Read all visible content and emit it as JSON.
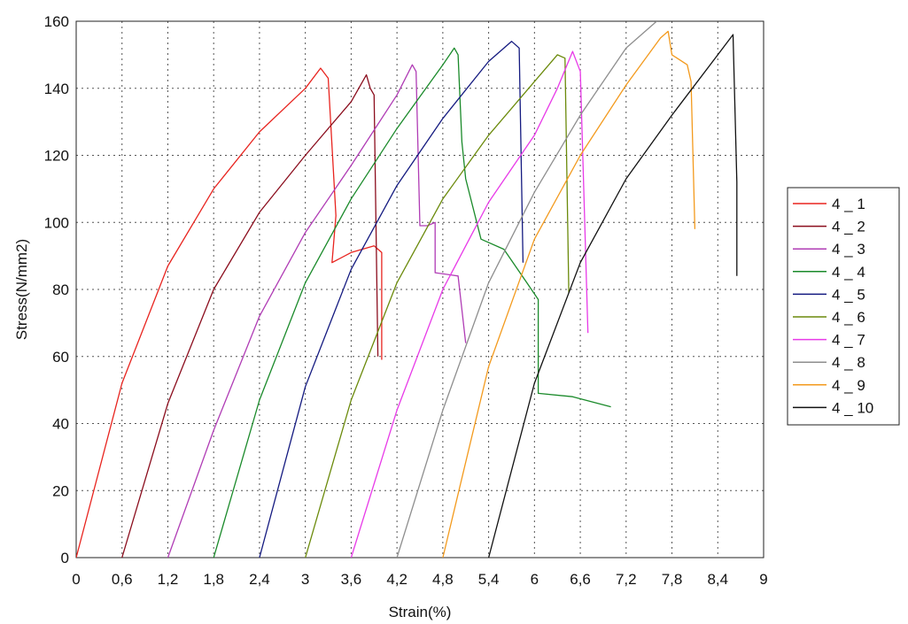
{
  "chart_data": {
    "type": "line",
    "title": "",
    "xlabel": "Strain(%)",
    "ylabel": "Stress(N/mm2)",
    "xlim": [
      0,
      9
    ],
    "ylim": [
      0,
      160
    ],
    "x_ticks": [
      "0",
      "0,6",
      "1,2",
      "1,8",
      "2,4",
      "3",
      "3,6",
      "4,2",
      "4,8",
      "5,4",
      "6",
      "6,6",
      "7,2",
      "7,8",
      "8,4",
      "9"
    ],
    "y_ticks": [
      "0",
      "20",
      "40",
      "60",
      "80",
      "100",
      "120",
      "140",
      "160"
    ],
    "grid": true,
    "legend_position": "right",
    "series": [
      {
        "name": "4 _ 1",
        "color": "#e8241f",
        "points": [
          [
            0,
            0
          ],
          [
            0.6,
            52
          ],
          [
            1.2,
            87
          ],
          [
            1.8,
            110
          ],
          [
            2.4,
            127
          ],
          [
            3.0,
            140
          ],
          [
            3.2,
            146
          ],
          [
            3.3,
            143
          ],
          [
            3.4,
            102
          ],
          [
            3.35,
            88
          ],
          [
            3.6,
            91
          ],
          [
            3.9,
            93
          ],
          [
            4.0,
            91
          ],
          [
            4.0,
            59
          ]
        ]
      },
      {
        "name": "4 _ 2",
        "color": "#8b0d1d",
        "points": [
          [
            0.6,
            0
          ],
          [
            1.2,
            46
          ],
          [
            1.8,
            80
          ],
          [
            2.4,
            103
          ],
          [
            3.0,
            120
          ],
          [
            3.6,
            136
          ],
          [
            3.8,
            144
          ],
          [
            3.85,
            140
          ],
          [
            3.9,
            138
          ],
          [
            3.95,
            60
          ]
        ]
      },
      {
        "name": "4 _ 3",
        "color": "#b03cb5",
        "points": [
          [
            1.2,
            0
          ],
          [
            1.8,
            38
          ],
          [
            2.4,
            72
          ],
          [
            3.0,
            97
          ],
          [
            3.6,
            117
          ],
          [
            4.2,
            138
          ],
          [
            4.4,
            147
          ],
          [
            4.45,
            145
          ],
          [
            4.5,
            99
          ],
          [
            4.6,
            99
          ],
          [
            4.7,
            100
          ],
          [
            4.7,
            85
          ],
          [
            5.0,
            84
          ],
          [
            5.1,
            64
          ]
        ]
      },
      {
        "name": "4 _ 4",
        "color": "#1a8a2a",
        "points": [
          [
            1.8,
            0
          ],
          [
            2.4,
            47
          ],
          [
            3.0,
            82
          ],
          [
            3.6,
            107
          ],
          [
            4.2,
            128
          ],
          [
            4.8,
            147
          ],
          [
            4.95,
            152
          ],
          [
            5.0,
            150
          ],
          [
            5.05,
            124
          ],
          [
            5.1,
            113
          ],
          [
            5.3,
            95
          ],
          [
            5.6,
            92
          ],
          [
            5.9,
            82
          ],
          [
            6.05,
            77
          ],
          [
            6.05,
            49
          ],
          [
            6.5,
            48
          ],
          [
            7.0,
            45
          ]
        ]
      },
      {
        "name": "4 _ 5",
        "color": "#141a80",
        "points": [
          [
            2.4,
            0
          ],
          [
            3.0,
            51
          ],
          [
            3.6,
            86
          ],
          [
            4.2,
            111
          ],
          [
            4.8,
            131
          ],
          [
            5.4,
            148
          ],
          [
            5.7,
            154
          ],
          [
            5.8,
            152
          ],
          [
            5.85,
            88
          ]
        ]
      },
      {
        "name": "4 _ 6",
        "color": "#6b8a0b",
        "points": [
          [
            3.0,
            0
          ],
          [
            3.6,
            47
          ],
          [
            4.2,
            82
          ],
          [
            4.8,
            107
          ],
          [
            5.4,
            126
          ],
          [
            6.0,
            142
          ],
          [
            6.3,
            150
          ],
          [
            6.4,
            149
          ],
          [
            6.45,
            79
          ]
        ]
      },
      {
        "name": "4 _ 7",
        "color": "#e83ae8",
        "points": [
          [
            3.6,
            0
          ],
          [
            4.2,
            44
          ],
          [
            4.8,
            80
          ],
          [
            5.4,
            106
          ],
          [
            6.0,
            126
          ],
          [
            6.3,
            140
          ],
          [
            6.5,
            151
          ],
          [
            6.6,
            145
          ],
          [
            6.7,
            67
          ]
        ]
      },
      {
        "name": "4 _ 8",
        "color": "#8e8e8e",
        "points": [
          [
            4.2,
            0
          ],
          [
            4.8,
            44
          ],
          [
            5.4,
            82
          ],
          [
            6.0,
            109
          ],
          [
            6.6,
            132
          ],
          [
            7.2,
            152
          ],
          [
            7.6,
            160
          ]
        ]
      },
      {
        "name": "4 _ 9",
        "color": "#f39a1d",
        "points": [
          [
            4.8,
            0
          ],
          [
            5.4,
            57
          ],
          [
            6.0,
            95
          ],
          [
            6.6,
            120
          ],
          [
            7.2,
            141
          ],
          [
            7.65,
            155
          ],
          [
            7.75,
            157
          ],
          [
            7.8,
            150
          ],
          [
            8.0,
            147
          ],
          [
            8.05,
            142
          ],
          [
            8.1,
            98
          ]
        ]
      },
      {
        "name": "4 _ 10",
        "color": "#111111",
        "points": [
          [
            5.4,
            0
          ],
          [
            6.0,
            52
          ],
          [
            6.6,
            88
          ],
          [
            7.2,
            113
          ],
          [
            7.8,
            132
          ],
          [
            8.4,
            150
          ],
          [
            8.6,
            156
          ],
          [
            8.65,
            112
          ],
          [
            8.65,
            84
          ]
        ]
      }
    ]
  }
}
